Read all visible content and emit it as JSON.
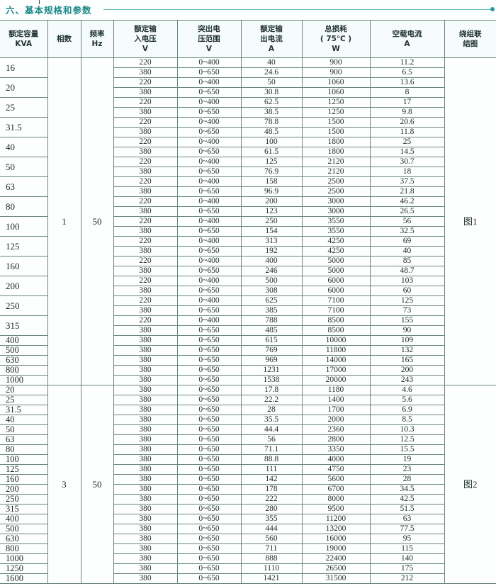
{
  "title": "六、基本规格和参数",
  "headers": [
    [
      "额定容量",
      "KVA"
    ],
    [
      "相数"
    ],
    [
      "频率",
      "Hz"
    ],
    [
      "额定输",
      "入电压",
      "V"
    ],
    [
      "突出电",
      "压范围",
      "V"
    ],
    [
      "额定输",
      "出电流",
      "A"
    ],
    [
      "总损耗",
      "( 75℃ )",
      "W"
    ],
    [
      "空载电流",
      "A"
    ],
    [
      "绕组联",
      "结图"
    ]
  ],
  "groups": [
    {
      "phase": "1",
      "freq": "50",
      "diagram": "图1",
      "rows": [
        {
          "kva": "16",
          "sub": [
            [
              "220",
              "0~400",
              "40",
              "900",
              "11.2"
            ],
            [
              "380",
              "0~650",
              "24.6",
              "900",
              "6.5"
            ]
          ]
        },
        {
          "kva": "20",
          "sub": [
            [
              "220",
              "0~400",
              "50",
              "1060",
              "13.6"
            ],
            [
              "380",
              "0~650",
              "30.8",
              "1060",
              "8"
            ]
          ]
        },
        {
          "kva": "25",
          "sub": [
            [
              "220",
              "0~400",
              "62.5",
              "1250",
              "17"
            ],
            [
              "380",
              "0~650",
              "38.5",
              "1250",
              "9.8"
            ]
          ]
        },
        {
          "kva": "31.5",
          "sub": [
            [
              "220",
              "0~400",
              "78.8",
              "1500",
              "20.6"
            ],
            [
              "380",
              "0~650",
              "48.5",
              "1500",
              "11.8"
            ]
          ]
        },
        {
          "kva": "40",
          "sub": [
            [
              "220",
              "0~400",
              "100",
              "1800",
              "25"
            ],
            [
              "380",
              "0~650",
              "61.5",
              "1800",
              "14.5"
            ]
          ]
        },
        {
          "kva": "50",
          "sub": [
            [
              "220",
              "0~400",
              "125",
              "2120",
              "30.7"
            ],
            [
              "380",
              "0~650",
              "76.9",
              "2120",
              "18"
            ]
          ]
        },
        {
          "kva": "63",
          "sub": [
            [
              "220",
              "0~400",
              "158",
              "2500",
              "37.5"
            ],
            [
              "380",
              "0~650",
              "96.9",
              "2500",
              "21.8"
            ]
          ]
        },
        {
          "kva": "80",
          "sub": [
            [
              "220",
              "0~400",
              "200",
              "3000",
              "46.2"
            ],
            [
              "380",
              "0~650",
              "123",
              "3000",
              "26.5"
            ]
          ]
        },
        {
          "kva": "100",
          "sub": [
            [
              "220",
              "0~400",
              "250",
              "3550",
              "56"
            ],
            [
              "380",
              "0~650",
              "154",
              "3550",
              "32.5"
            ]
          ]
        },
        {
          "kva": "125",
          "sub": [
            [
              "220",
              "0~400",
              "313",
              "4250",
              "69"
            ],
            [
              "380",
              "0~650",
              "192",
              "4250",
              "40"
            ]
          ]
        },
        {
          "kva": "160",
          "sub": [
            [
              "220",
              "0~400",
              "400",
              "5000",
              "85"
            ],
            [
              "380",
              "0~650",
              "246",
              "5000",
              "48.7"
            ]
          ]
        },
        {
          "kva": "200",
          "sub": [
            [
              "220",
              "0~400",
              "500",
              "6000",
              "103"
            ],
            [
              "380",
              "0~650",
              "308",
              "6000",
              "60"
            ]
          ]
        },
        {
          "kva": "250",
          "sub": [
            [
              "220",
              "0~400",
              "625",
              "7100",
              "125"
            ],
            [
              "380",
              "0~650",
              "385",
              "7100",
              "73"
            ]
          ]
        },
        {
          "kva": "315",
          "sub": [
            [
              "220",
              "0~400",
              "788",
              "8500",
              "155"
            ],
            [
              "380",
              "0~650",
              "485",
              "8500",
              "90"
            ]
          ]
        },
        {
          "kva": "400",
          "sub": [
            [
              "380",
              "0~650",
              "615",
              "10000",
              "109"
            ]
          ]
        },
        {
          "kva": "500",
          "sub": [
            [
              "380",
              "0~650",
              "769",
              "11800",
              "132"
            ]
          ]
        },
        {
          "kva": "630",
          "sub": [
            [
              "380",
              "0~650",
              "969",
              "14000",
              "165"
            ]
          ]
        },
        {
          "kva": "800",
          "sub": [
            [
              "380",
              "0~650",
              "1231",
              "17000",
              "200"
            ]
          ]
        },
        {
          "kva": "1000",
          "sub": [
            [
              "380",
              "0~650",
              "1538",
              "20000",
              "243"
            ]
          ]
        }
      ]
    },
    {
      "phase": "3",
      "freq": "50",
      "diagram": "图2",
      "rows": [
        {
          "kva": "20",
          "sub": [
            [
              "380",
              "0~650",
              "17.8",
              "1180",
              "4.6"
            ]
          ]
        },
        {
          "kva": "25",
          "sub": [
            [
              "380",
              "0~650",
              "22.2",
              "1400",
              "5.6"
            ]
          ]
        },
        {
          "kva": "31.5",
          "sub": [
            [
              "380",
              "0~650",
              "28",
              "1700",
              "6.9"
            ]
          ]
        },
        {
          "kva": "40",
          "sub": [
            [
              "380",
              "0~650",
              "35.5",
              "2000",
              "8.5"
            ]
          ]
        },
        {
          "kva": "50",
          "sub": [
            [
              "380",
              "0~650",
              "44.4",
              "2360",
              "10.3"
            ]
          ]
        },
        {
          "kva": "63",
          "sub": [
            [
              "380",
              "0~650",
              "56",
              "2800",
              "12.5"
            ]
          ]
        },
        {
          "kva": "80",
          "sub": [
            [
              "380",
              "0~650",
              "71.1",
              "3350",
              "15.5"
            ]
          ]
        },
        {
          "kva": "100",
          "sub": [
            [
              "380",
              "0~650",
              "88.8",
              "4000",
              "19"
            ]
          ]
        },
        {
          "kva": "125",
          "sub": [
            [
              "380",
              "0~650",
              "111",
              "4750",
              "23"
            ]
          ]
        },
        {
          "kva": "160",
          "sub": [
            [
              "380",
              "0~650",
              "142",
              "5600",
              "28"
            ]
          ]
        },
        {
          "kva": "200",
          "sub": [
            [
              "380",
              "0~650",
              "178",
              "6700",
              "34.5"
            ]
          ]
        },
        {
          "kva": "250",
          "sub": [
            [
              "380",
              "0~650",
              "222",
              "8000",
              "42.5"
            ]
          ]
        },
        {
          "kva": "315",
          "sub": [
            [
              "380",
              "0~650",
              "280",
              "9500",
              "51.5"
            ]
          ]
        },
        {
          "kva": "400",
          "sub": [
            [
              "380",
              "0~650",
              "355",
              "11200",
              "63"
            ]
          ]
        },
        {
          "kva": "500",
          "sub": [
            [
              "380",
              "0~650",
              "444",
              "13200",
              "77.5"
            ]
          ]
        },
        {
          "kva": "630",
          "sub": [
            [
              "380",
              "0~650",
              "560",
              "16000",
              "95"
            ]
          ]
        },
        {
          "kva": "800",
          "sub": [
            [
              "380",
              "0~650",
              "711",
              "19000",
              "115"
            ]
          ]
        },
        {
          "kva": "1000",
          "sub": [
            [
              "380",
              "0~650",
              "888",
              "22400",
              "140"
            ]
          ]
        },
        {
          "kva": "1250",
          "sub": [
            [
              "380",
              "0~650",
              "1110",
              "26500",
              "175"
            ]
          ]
        },
        {
          "kva": "1600",
          "sub": [
            [
              "380",
              "0~650",
              "1421",
              "31500",
              "212"
            ]
          ]
        }
      ]
    }
  ]
}
